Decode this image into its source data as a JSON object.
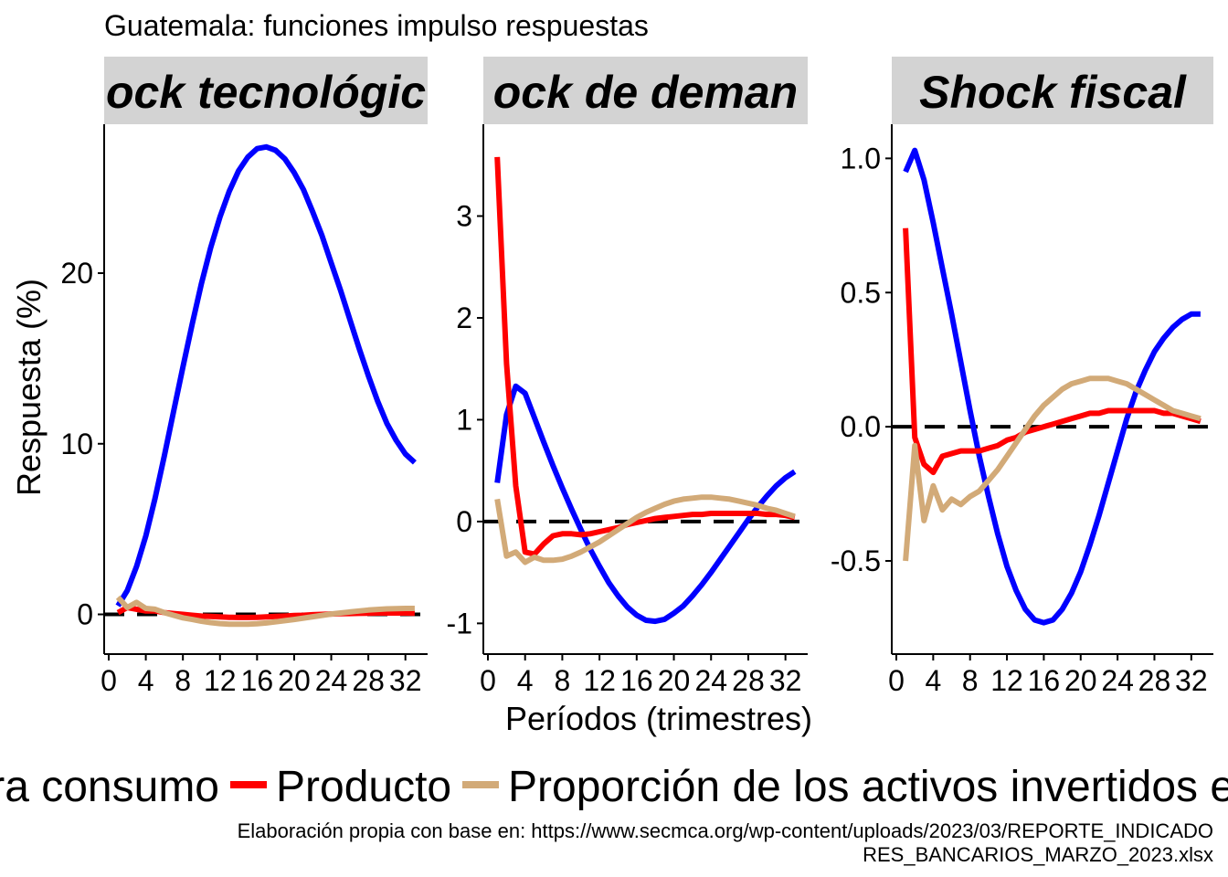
{
  "title": "Guatemala: funciones impulso respuestas",
  "ylabel": "Respuesta (%)",
  "xlabel": "Períodos (trimestres)",
  "caption_line1": "Elaboración propia con base en: https://www.secmca.org/wp-content/uploads/2023/03/REPORTE_INDICADO",
  "caption_line2": "RES_BANCARIOS_MARZO_2023.xlsx",
  "colors": {
    "credit": "#0000ff",
    "output": "#ff0000",
    "share": "#d2aa78",
    "zero_line": "#000000",
    "strip_bg": "#d3d3d3"
  },
  "legend": [
    {
      "label": "ra consumo",
      "color": "#0000ff",
      "series": "credit"
    },
    {
      "label": "Producto",
      "color": "#ff0000",
      "series": "output"
    },
    {
      "label": "Proporción de los activos invertidos e",
      "color": "#d2aa78",
      "series": "share"
    }
  ],
  "chart_data": [
    {
      "type": "line",
      "title": "ock tecnológic",
      "x_ticks": [
        0,
        4,
        8,
        12,
        16,
        20,
        24,
        28,
        32
      ],
      "x_tick_labels": [
        "0",
        "4",
        "8",
        "12",
        "16",
        "20",
        "24",
        "28",
        "32"
      ],
      "xlim": [
        0,
        34
      ],
      "ylim": [
        -1.9,
        28.3
      ],
      "y_ticks": [
        0,
        10,
        20
      ],
      "y_tick_labels": [
        "0",
        "10",
        "20"
      ],
      "zero_line": true,
      "grid": false,
      "series": [
        {
          "key": "credit",
          "x": [
            1,
            2,
            3,
            4,
            5,
            6,
            7,
            8,
            9,
            10,
            11,
            12,
            13,
            14,
            15,
            16,
            17,
            18,
            19,
            20,
            21,
            22,
            23,
            24,
            25,
            26,
            27,
            28,
            29,
            30,
            31,
            32,
            33
          ],
          "values": [
            0.5,
            1.4,
            2.8,
            4.6,
            6.8,
            9.3,
            11.9,
            14.5,
            17.0,
            19.4,
            21.5,
            23.3,
            24.8,
            26.0,
            26.8,
            27.3,
            27.4,
            27.2,
            26.7,
            25.9,
            24.9,
            23.6,
            22.2,
            20.6,
            19.0,
            17.3,
            15.6,
            14.0,
            12.5,
            11.2,
            10.2,
            9.4,
            8.9
          ]
        },
        {
          "key": "output",
          "x": [
            1,
            2,
            3,
            4,
            5,
            6,
            7,
            8,
            9,
            10,
            11,
            12,
            13,
            14,
            15,
            16,
            17,
            18,
            19,
            20,
            21,
            22,
            23,
            24,
            25,
            26,
            27,
            28,
            29,
            30,
            31,
            32,
            33
          ],
          "values": [
            0.1,
            0.4,
            0.3,
            0.2,
            0.2,
            0.1,
            0.05,
            0.0,
            -0.05,
            -0.1,
            -0.12,
            -0.15,
            -0.17,
            -0.18,
            -0.18,
            -0.17,
            -0.15,
            -0.12,
            -0.1,
            -0.07,
            -0.05,
            -0.02,
            0.0,
            0.02,
            0.04,
            0.05,
            0.06,
            0.07,
            0.08,
            0.08,
            0.08,
            0.08,
            0.07
          ]
        },
        {
          "key": "share",
          "x": [
            1,
            2,
            3,
            4,
            5,
            6,
            7,
            8,
            9,
            10,
            11,
            12,
            13,
            14,
            15,
            16,
            17,
            18,
            19,
            20,
            21,
            22,
            23,
            24,
            25,
            26,
            27,
            28,
            29,
            30,
            31,
            32,
            33
          ],
          "values": [
            1.0,
            0.4,
            0.7,
            0.35,
            0.3,
            0.1,
            -0.05,
            -0.2,
            -0.3,
            -0.4,
            -0.48,
            -0.54,
            -0.57,
            -0.58,
            -0.58,
            -0.55,
            -0.5,
            -0.44,
            -0.37,
            -0.3,
            -0.22,
            -0.14,
            -0.06,
            0.02,
            0.08,
            0.14,
            0.2,
            0.25,
            0.29,
            0.32,
            0.34,
            0.35,
            0.35
          ]
        }
      ]
    },
    {
      "type": "line",
      "title": "ock de deman",
      "x_ticks": [
        0,
        4,
        8,
        12,
        16,
        20,
        24,
        28,
        32
      ],
      "x_tick_labels": [
        "0",
        "4",
        "8",
        "12",
        "16",
        "20",
        "24",
        "28",
        "32"
      ],
      "xlim": [
        0,
        34
      ],
      "ylim": [
        -1.23,
        3.83
      ],
      "y_ticks": [
        -1,
        0,
        1,
        2,
        3
      ],
      "y_tick_labels": [
        "-1",
        "0",
        "1",
        "2",
        "3"
      ],
      "zero_line": true,
      "grid": false,
      "series": [
        {
          "key": "credit",
          "x": [
            1,
            2,
            3,
            4,
            5,
            6,
            7,
            8,
            9,
            10,
            11,
            12,
            13,
            14,
            15,
            16,
            17,
            18,
            19,
            20,
            21,
            22,
            23,
            24,
            25,
            26,
            27,
            28,
            29,
            30,
            31,
            32,
            33
          ],
          "values": [
            0.38,
            1.05,
            1.33,
            1.26,
            1.02,
            0.78,
            0.55,
            0.33,
            0.12,
            -0.08,
            -0.27,
            -0.44,
            -0.6,
            -0.73,
            -0.84,
            -0.92,
            -0.97,
            -0.98,
            -0.96,
            -0.9,
            -0.83,
            -0.73,
            -0.62,
            -0.5,
            -0.37,
            -0.24,
            -0.11,
            0.02,
            0.14,
            0.25,
            0.35,
            0.43,
            0.49
          ]
        },
        {
          "key": "output",
          "x": [
            1,
            2,
            3,
            4,
            5,
            6,
            7,
            8,
            9,
            10,
            11,
            12,
            13,
            14,
            15,
            16,
            17,
            18,
            19,
            20,
            21,
            22,
            23,
            24,
            25,
            26,
            27,
            28,
            29,
            30,
            31,
            32,
            33
          ],
          "values": [
            3.58,
            1.55,
            0.35,
            -0.3,
            -0.32,
            -0.22,
            -0.14,
            -0.12,
            -0.12,
            -0.13,
            -0.12,
            -0.1,
            -0.08,
            -0.06,
            -0.03,
            -0.01,
            0.01,
            0.03,
            0.04,
            0.05,
            0.06,
            0.07,
            0.07,
            0.08,
            0.08,
            0.08,
            0.08,
            0.08,
            0.08,
            0.07,
            0.07,
            0.06,
            0.04
          ]
        },
        {
          "key": "share",
          "x": [
            1,
            2,
            3,
            4,
            5,
            6,
            7,
            8,
            9,
            10,
            11,
            12,
            13,
            14,
            15,
            16,
            17,
            18,
            19,
            20,
            21,
            22,
            23,
            24,
            25,
            26,
            27,
            28,
            29,
            30,
            31,
            32,
            33
          ],
          "values": [
            0.22,
            -0.34,
            -0.3,
            -0.4,
            -0.35,
            -0.38,
            -0.38,
            -0.37,
            -0.34,
            -0.3,
            -0.25,
            -0.2,
            -0.14,
            -0.08,
            -0.02,
            0.04,
            0.09,
            0.13,
            0.17,
            0.2,
            0.22,
            0.23,
            0.24,
            0.24,
            0.23,
            0.22,
            0.2,
            0.18,
            0.16,
            0.13,
            0.11,
            0.08,
            0.05
          ]
        }
      ]
    },
    {
      "type": "line",
      "title": "Shock fiscal",
      "x_ticks": [
        0,
        4,
        8,
        12,
        16,
        20,
        24,
        28,
        32
      ],
      "x_tick_labels": [
        "0",
        "4",
        "8",
        "12",
        "16",
        "20",
        "24",
        "28",
        "32"
      ],
      "xlim": [
        0,
        34
      ],
      "ylim": [
        -0.82,
        1.1
      ],
      "y_ticks": [
        -0.5,
        0,
        0.5,
        1.0
      ],
      "y_tick_labels": [
        "-0.5",
        "0.0",
        "0.5",
        "1.0"
      ],
      "zero_line": true,
      "grid": false,
      "series": [
        {
          "key": "credit",
          "x": [
            1,
            2,
            3,
            4,
            5,
            6,
            7,
            8,
            9,
            10,
            11,
            12,
            13,
            14,
            15,
            16,
            17,
            18,
            19,
            20,
            21,
            22,
            23,
            24,
            25,
            26,
            27,
            28,
            29,
            30,
            31,
            32,
            33
          ],
          "values": [
            0.95,
            1.03,
            0.92,
            0.76,
            0.59,
            0.42,
            0.24,
            0.06,
            -0.11,
            -0.26,
            -0.4,
            -0.52,
            -0.61,
            -0.68,
            -0.72,
            -0.73,
            -0.72,
            -0.68,
            -0.62,
            -0.54,
            -0.44,
            -0.33,
            -0.21,
            -0.09,
            0.03,
            0.13,
            0.21,
            0.28,
            0.33,
            0.37,
            0.4,
            0.42,
            0.42
          ]
        },
        {
          "key": "output",
          "x": [
            1,
            2,
            3,
            4,
            5,
            6,
            7,
            8,
            9,
            10,
            11,
            12,
            13,
            14,
            15,
            16,
            17,
            18,
            19,
            20,
            21,
            22,
            23,
            24,
            25,
            26,
            27,
            28,
            29,
            30,
            31,
            32,
            33
          ],
          "values": [
            0.74,
            -0.04,
            -0.14,
            -0.17,
            -0.11,
            -0.1,
            -0.09,
            -0.09,
            -0.09,
            -0.08,
            -0.07,
            -0.05,
            -0.04,
            -0.02,
            -0.01,
            0.0,
            0.01,
            0.02,
            0.03,
            0.04,
            0.05,
            0.05,
            0.06,
            0.06,
            0.06,
            0.06,
            0.06,
            0.06,
            0.05,
            0.05,
            0.04,
            0.03,
            0.02
          ]
        },
        {
          "key": "share",
          "x": [
            1,
            2,
            3,
            4,
            5,
            6,
            7,
            8,
            9,
            10,
            11,
            12,
            13,
            14,
            15,
            16,
            17,
            18,
            19,
            20,
            21,
            22,
            23,
            24,
            25,
            26,
            27,
            28,
            29,
            30,
            31,
            32,
            33
          ],
          "values": [
            -0.5,
            -0.07,
            -0.35,
            -0.22,
            -0.31,
            -0.27,
            -0.29,
            -0.26,
            -0.24,
            -0.2,
            -0.16,
            -0.11,
            -0.06,
            -0.01,
            0.04,
            0.08,
            0.11,
            0.14,
            0.16,
            0.17,
            0.18,
            0.18,
            0.18,
            0.17,
            0.16,
            0.14,
            0.12,
            0.1,
            0.08,
            0.06,
            0.05,
            0.04,
            0.03
          ]
        }
      ]
    }
  ]
}
